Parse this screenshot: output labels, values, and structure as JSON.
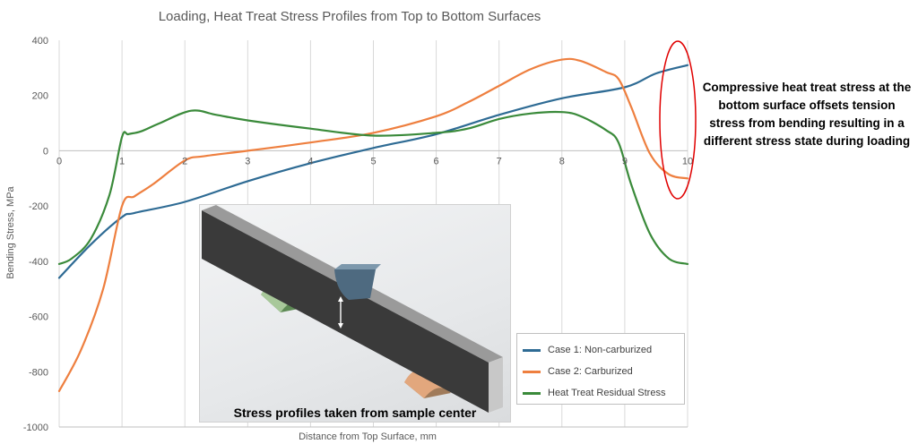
{
  "chart_data": {
    "type": "line",
    "title": "Loading, Heat Treat Stress Profiles from Top to Bottom Surfaces",
    "xlabel": "Distance from Top Surface, mm",
    "ylabel": "Bending Stress, MPa",
    "xlim": [
      0,
      10
    ],
    "ylim": [
      -1000,
      400
    ],
    "x_ticks": [
      "0",
      "1",
      "2",
      "3",
      "4",
      "5",
      "6",
      "7",
      "8",
      "9",
      "10"
    ],
    "y_ticks": [
      "400",
      "200",
      "0",
      "-200",
      "-400",
      "-600",
      "-800",
      "-1000"
    ],
    "grid": "vertical",
    "legend_position": "bottom-right",
    "series": [
      {
        "name": "Case 1: Non-carburized",
        "color": "#2e6b94",
        "x": [
          0,
          0.5,
          1,
          1.2,
          2,
          3,
          4,
          5,
          6,
          7,
          8,
          9,
          9.5,
          10
        ],
        "y": [
          -460,
          -340,
          -240,
          -225,
          -185,
          -110,
          -45,
          10,
          60,
          130,
          190,
          230,
          280,
          310
        ]
      },
      {
        "name": "Case 2: Carburized",
        "color": "#ee7f3f",
        "x": [
          0,
          0.35,
          0.7,
          1,
          1.2,
          1.5,
          2,
          2.3,
          3,
          4,
          5,
          6,
          6.5,
          7,
          7.5,
          8,
          8.3,
          8.7,
          8.9,
          9.1,
          9.4,
          9.7,
          10
        ],
        "y": [
          -870,
          -720,
          -500,
          -200,
          -165,
          -120,
          -35,
          -20,
          0,
          30,
          65,
          125,
          175,
          235,
          295,
          330,
          325,
          285,
          260,
          160,
          -10,
          -85,
          -100
        ]
      },
      {
        "name": "Heat Treat Residual Stress",
        "color": "#3a8a3a",
        "x": [
          0,
          0.2,
          0.5,
          0.8,
          1,
          1.1,
          1.3,
          1.6,
          2.1,
          2.5,
          3,
          4,
          5,
          6,
          6.5,
          7,
          7.5,
          8,
          8.3,
          8.7,
          8.9,
          9.1,
          9.4,
          9.7,
          10
        ],
        "y": [
          -410,
          -390,
          -320,
          -160,
          50,
          60,
          70,
          100,
          145,
          130,
          110,
          80,
          55,
          65,
          80,
          115,
          135,
          140,
          125,
          75,
          30,
          -120,
          -300,
          -390,
          -410
        ]
      }
    ]
  },
  "inset": {
    "caption": "Stress profiles taken from sample center"
  },
  "annotation": {
    "text": "Compressive heat treat stress at the bottom surface offsets tension stress from bending resulting in a different stress state during loading",
    "highlight_color": "#e00000"
  }
}
